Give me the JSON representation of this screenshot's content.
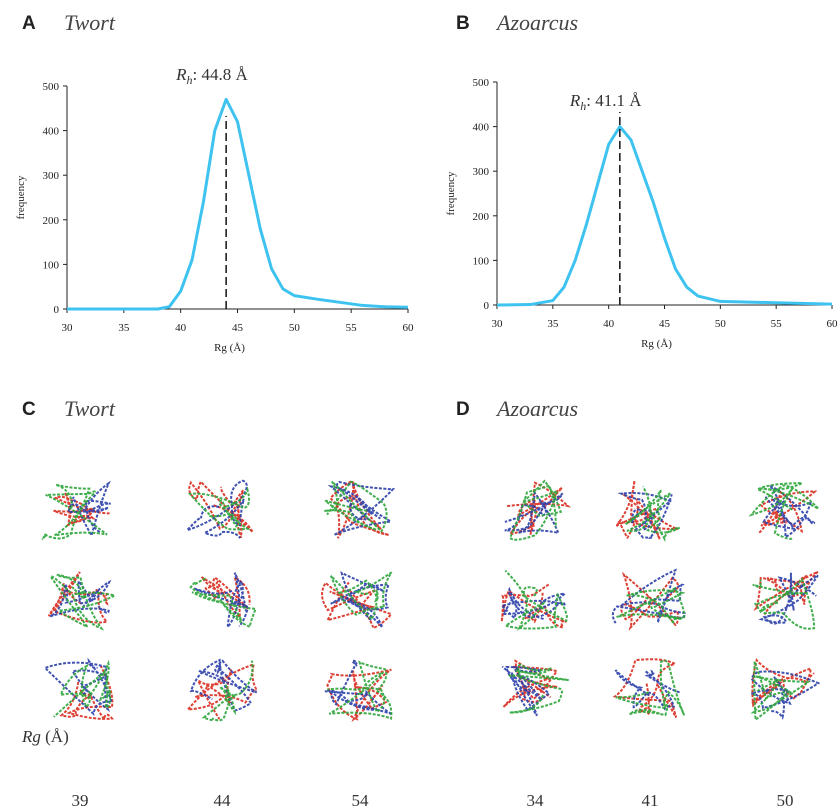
{
  "chart_data": [
    {
      "type": "line",
      "panel": "A",
      "title": "Twort",
      "x": [
        30,
        35,
        38,
        39,
        40,
        41,
        42,
        43,
        44,
        45,
        46,
        47,
        48,
        49,
        50,
        52,
        54,
        56,
        58,
        60
      ],
      "series": [
        {
          "name": "Twort",
          "color": "#3ec3f0",
          "values": [
            0,
            0,
            0,
            5,
            40,
            110,
            240,
            400,
            470,
            420,
            300,
            180,
            90,
            45,
            30,
            22,
            15,
            8,
            5,
            4
          ]
        }
      ],
      "xlabel": "Rg (Å)",
      "ylabel": "frequency",
      "xlim": [
        30,
        60
      ],
      "xticks": [
        30,
        35,
        40,
        45,
        50,
        55,
        60
      ],
      "ylim": [
        0,
        500
      ],
      "yticks": [
        0,
        100,
        200,
        300,
        400,
        500
      ],
      "marker_x": 44,
      "annotation": {
        "symbol": "R",
        "sub": "h",
        "text": ": 44.8 Å"
      }
    },
    {
      "type": "line",
      "panel": "B",
      "title": "Azoarcus",
      "x": [
        30,
        33,
        35,
        36,
        37,
        38,
        39,
        40,
        41,
        42,
        43,
        44,
        45,
        46,
        47,
        48,
        50,
        55,
        60
      ],
      "series": [
        {
          "name": "Azoarcus",
          "color": "#3ec3f0",
          "values": [
            0,
            1,
            10,
            40,
            100,
            180,
            270,
            360,
            400,
            370,
            300,
            230,
            150,
            80,
            40,
            20,
            8,
            5,
            2
          ]
        }
      ],
      "xlabel": "Rg (Å)",
      "ylabel": "frequency",
      "xlim": [
        30,
        60
      ],
      "xticks": [
        30,
        35,
        40,
        45,
        50,
        55,
        60
      ],
      "ylim": [
        0,
        500
      ],
      "yticks": [
        0,
        100,
        200,
        300,
        400,
        500
      ],
      "marker_x": 41,
      "annotation": {
        "symbol": "R",
        "sub": "h",
        "text": ": 41.1 Å"
      }
    }
  ],
  "panels": [
    {
      "letter": "C",
      "title": "Twort",
      "rg": [
        "39",
        "44",
        "54"
      ]
    },
    {
      "letter": "D",
      "title": "Azoarcus",
      "rg": [
        "34",
        "41",
        "50"
      ]
    }
  ],
  "rg_label": {
    "symbol": "Rg",
    "unit": "(Å)"
  }
}
